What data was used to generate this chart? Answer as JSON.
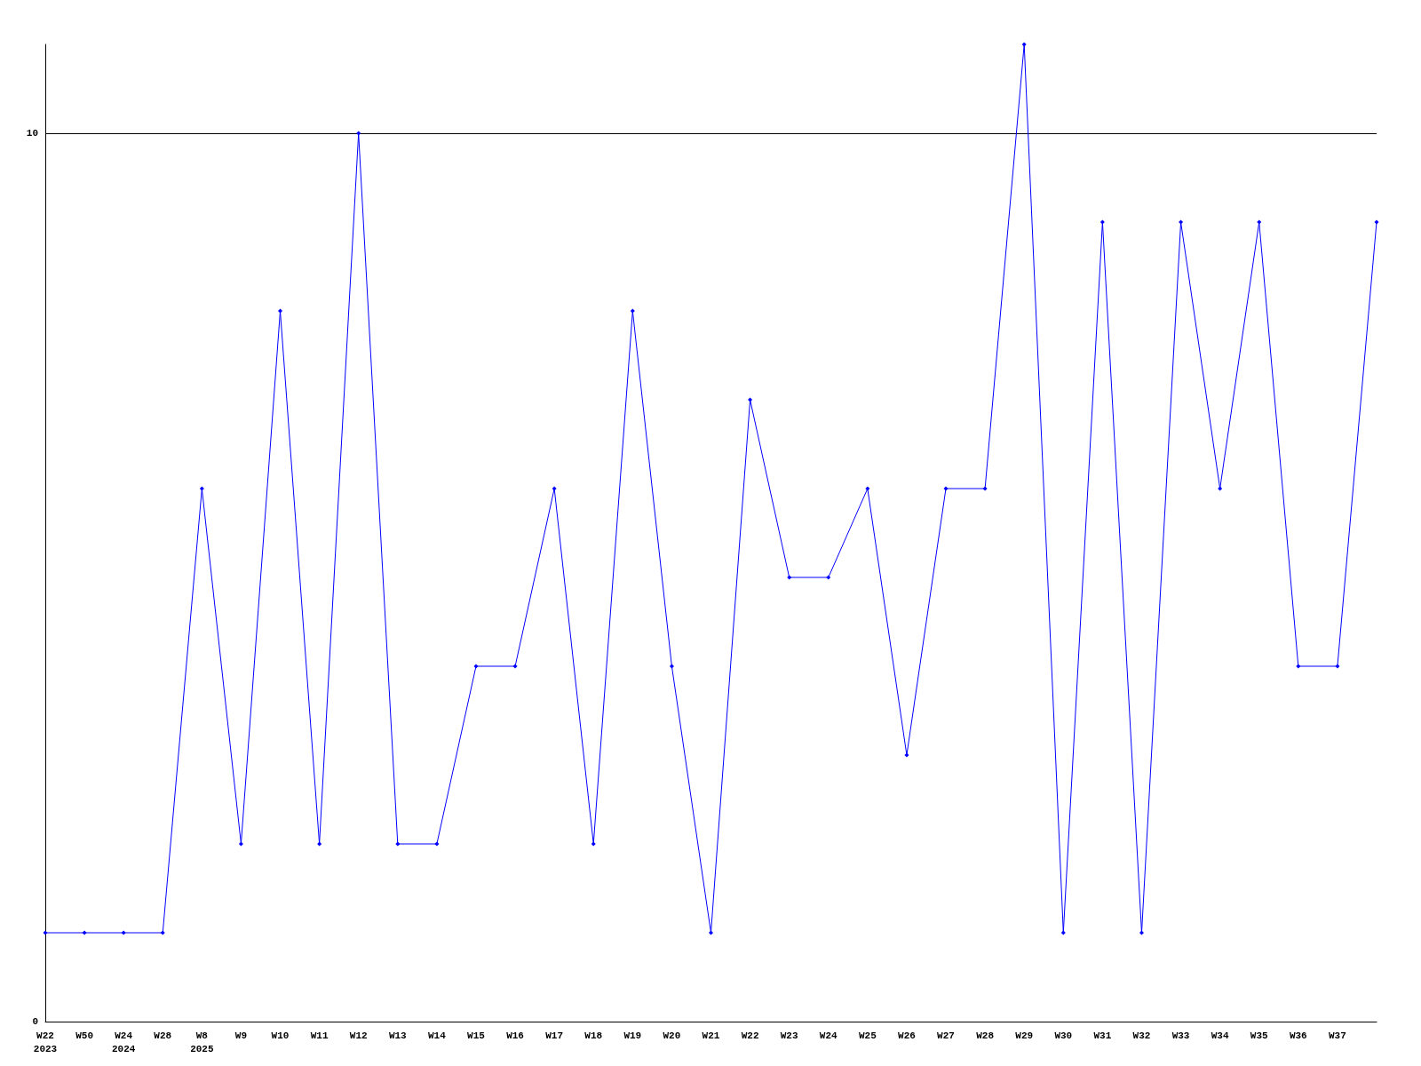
{
  "chart_data": {
    "type": "line",
    "categories": [
      "W22\n2023",
      "W50",
      "W24\n2024",
      "W28",
      "W8\n2025",
      "W9",
      "W10",
      "W11",
      "W12",
      "W13",
      "W14",
      "W15",
      "W16",
      "W17",
      "W18",
      "W19",
      "W20",
      "W21",
      "W22",
      "W23",
      "W24",
      "W25",
      "W26",
      "W27",
      "W28",
      "W29",
      "W30",
      "W31",
      "W32",
      "W33",
      "W34",
      "W35",
      "W36",
      "W37",
      null
    ],
    "series": [
      {
        "color": "#0000ff",
        "values": [
          1,
          1,
          1,
          1,
          6,
          2,
          8,
          2,
          10,
          2,
          2,
          4,
          4,
          6,
          2,
          8,
          4,
          1,
          7,
          5,
          5,
          6,
          3,
          6,
          6,
          11,
          1,
          9,
          1,
          9,
          6,
          9,
          4,
          4,
          9
        ]
      }
    ],
    "ylim": [
      0,
      11
    ],
    "yticks": [
      0,
      10
    ],
    "grid": "y",
    "marker": "diamond",
    "line_style": "solid"
  }
}
